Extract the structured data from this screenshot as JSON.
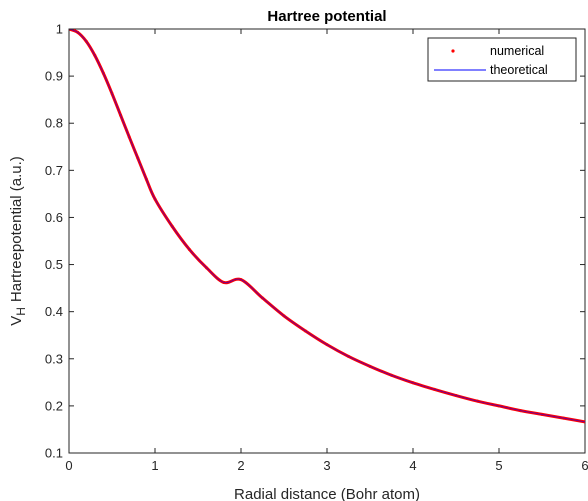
{
  "chart_data": {
    "type": "line",
    "title": "Hartree potential",
    "xlabel": "Radial distance (Bohr atom)",
    "ylabel": {
      "prefix": "V",
      "subscript": "H",
      "rest": "Hartreepotential (a.u.)"
    },
    "xlim": [
      0,
      6
    ],
    "ylim": [
      0.1,
      1
    ],
    "xticks": [
      0,
      1,
      2,
      3,
      4,
      5,
      6
    ],
    "xtick_labels": [
      "0",
      "1",
      "2",
      "3",
      "4",
      "5",
      "6"
    ],
    "yticks": [
      0.1,
      0.2,
      0.3,
      0.4,
      0.5,
      0.6,
      0.7,
      0.8,
      0.9,
      1
    ],
    "ytick_labels": [
      "0.1",
      "0.2",
      "0.3",
      "0.4",
      "0.5",
      "0.6",
      "0.7",
      "0.8",
      "0.9",
      "1"
    ],
    "grid": false,
    "legend_position": "top-right",
    "series": [
      {
        "name": "numerical",
        "style": "dots",
        "color": "#ff0000",
        "x": [
          0,
          0.1,
          0.2,
          0.3,
          0.4,
          0.5,
          0.6,
          0.7,
          0.8,
          0.9,
          1.0,
          1.2,
          1.4,
          1.6,
          1.8,
          2.0,
          2.25,
          2.5,
          2.75,
          3.0,
          3.25,
          3.5,
          3.75,
          4.0,
          4.25,
          4.5,
          4.75,
          5.0,
          5.25,
          5.5,
          5.75,
          6.0
        ],
        "y": [
          1.0,
          0.993,
          0.974,
          0.944,
          0.906,
          0.863,
          0.817,
          0.771,
          0.726,
          0.681,
          0.639,
          0.581,
          0.532,
          0.493,
          0.462,
          0.468,
          0.429,
          0.391,
          0.359,
          0.33,
          0.305,
          0.284,
          0.265,
          0.249,
          0.235,
          0.222,
          0.21,
          0.2,
          0.19,
          0.182,
          0.174,
          0.166
        ]
      },
      {
        "name": "theoretical",
        "style": "line",
        "color": "#0000ff",
        "x": [
          0,
          0.1,
          0.2,
          0.3,
          0.4,
          0.5,
          0.6,
          0.7,
          0.8,
          0.9,
          1.0,
          1.2,
          1.4,
          1.6,
          1.8,
          2.0,
          2.25,
          2.5,
          2.75,
          3.0,
          3.25,
          3.5,
          3.75,
          4.0,
          4.25,
          4.5,
          4.75,
          5.0,
          5.25,
          5.5,
          5.75,
          6.0
        ],
        "y": [
          1.0,
          0.993,
          0.974,
          0.944,
          0.906,
          0.863,
          0.817,
          0.771,
          0.726,
          0.681,
          0.639,
          0.581,
          0.532,
          0.493,
          0.462,
          0.468,
          0.429,
          0.391,
          0.359,
          0.33,
          0.305,
          0.284,
          0.265,
          0.249,
          0.235,
          0.222,
          0.21,
          0.2,
          0.19,
          0.182,
          0.174,
          0.166
        ]
      }
    ]
  }
}
